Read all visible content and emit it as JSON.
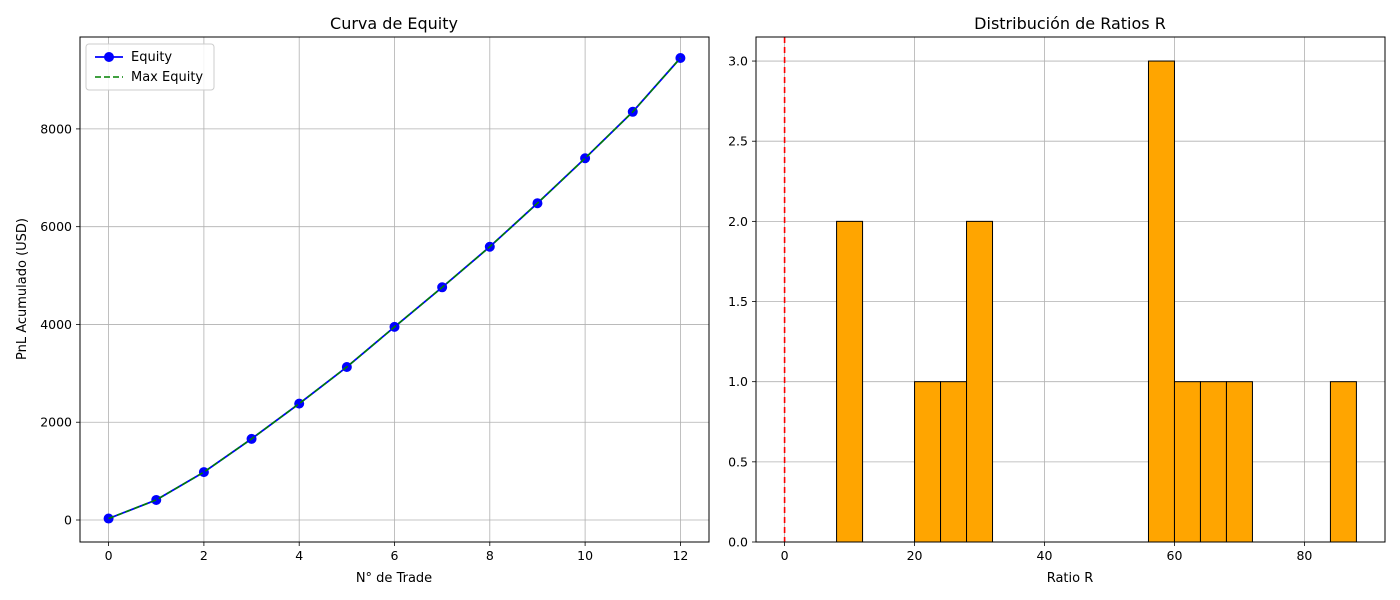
{
  "figure": {
    "background": "#ffffff"
  },
  "chart_data": [
    {
      "type": "line",
      "title": "Curva de Equity",
      "xlabel": "N° de Trade",
      "ylabel": "PnL Acumulado (USD)",
      "xlim": [
        -0.6,
        12.6
      ],
      "ylim": [
        -450,
        9880
      ],
      "xticks": [
        0,
        2,
        4,
        6,
        8,
        10,
        12
      ],
      "yticks": [
        0,
        2000,
        4000,
        6000,
        8000
      ],
      "grid": true,
      "legend": {
        "placement": "upper-left",
        "entries": [
          "Equity",
          "Max Equity"
        ]
      },
      "x": [
        0,
        1,
        2,
        3,
        4,
        5,
        6,
        7,
        8,
        9,
        10,
        11,
        12
      ],
      "series": [
        {
          "name": "Equity",
          "color": "#0000ff",
          "line_style": "solid",
          "marker": "circle",
          "values": [
            30,
            410,
            980,
            1660,
            2380,
            3130,
            3950,
            4760,
            5590,
            6480,
            7400,
            8350,
            9450
          ]
        },
        {
          "name": "Max Equity",
          "color": "#008000",
          "line_style": "dashed",
          "marker": "none",
          "values": [
            30,
            410,
            980,
            1660,
            2380,
            3130,
            3950,
            4760,
            5590,
            6480,
            7400,
            8350,
            9450
          ]
        }
      ]
    },
    {
      "type": "bar",
      "subtype": "histogram",
      "title": "Distribución de Ratios R",
      "xlabel": "Ratio R",
      "ylabel": "",
      "xlim": [
        -4.4,
        92.4
      ],
      "ylim": [
        0,
        3.15
      ],
      "xticks": [
        0,
        20,
        40,
        60,
        80
      ],
      "yticks": [
        0.0,
        0.5,
        1.0,
        1.5,
        2.0,
        2.5,
        3.0
      ],
      "grid": true,
      "bar_color": "#ffa500",
      "edge_color": "#000000",
      "bin_edges": [
        0,
        4,
        8,
        12,
        16,
        20,
        24,
        28,
        32,
        36,
        40,
        44,
        48,
        52,
        56,
        60,
        64,
        68,
        72,
        76,
        80,
        84,
        88
      ],
      "counts": [
        0,
        0,
        2,
        0,
        0,
        1,
        1,
        2,
        0,
        0,
        0,
        0,
        0,
        0,
        3,
        1,
        1,
        1,
        0,
        0,
        0,
        1
      ],
      "reference_line": {
        "x": 0,
        "color": "#ff0000",
        "line_style": "dashed"
      }
    }
  ]
}
